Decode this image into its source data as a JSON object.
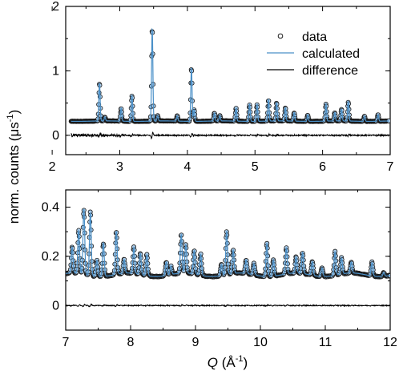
{
  "chart_data": {
    "type": "scatter",
    "ylabel": {
      "main": "norm. counts (μs",
      "sup": "-1",
      "close": ")"
    },
    "xlabel": {
      "sym": "Q",
      "open": " (Å",
      "sup": "-1",
      "close": ")"
    },
    "legend": {
      "placement": "top-right",
      "entries": [
        {
          "key": "data",
          "label": "data",
          "marker": "circle"
        },
        {
          "key": "calculated",
          "label": "calculated",
          "marker": "line"
        },
        {
          "key": "difference",
          "label": "difference",
          "marker": "line"
        }
      ]
    },
    "colors": {
      "data_marker_fill": "#a9c9e6",
      "data_marker_edge": "#1a1a1a",
      "calculated": "#4a90c8",
      "difference": "#000000"
    },
    "panels": [
      {
        "name": "top",
        "xlim": [
          2.2,
          7.0
        ],
        "ylim": [
          -0.3,
          2.0
        ],
        "xticks": [
          2,
          3,
          4,
          5,
          6,
          7
        ],
        "xtick_labels": [
          "2",
          "3",
          "4",
          "5",
          "6",
          "7"
        ],
        "yticks": [
          0,
          1,
          2
        ],
        "ytick_labels": [
          "0",
          "1",
          "2"
        ],
        "background": 0.22,
        "difference_offset": 0.0,
        "data_range": [
          2.28,
          6.98
        ],
        "peaks": [
          {
            "x": 2.7,
            "y": 0.8
          },
          {
            "x": 2.78,
            "y": 0.28
          },
          {
            "x": 3.02,
            "y": 0.42
          },
          {
            "x": 3.18,
            "y": 0.62
          },
          {
            "x": 3.48,
            "y": 1.65
          },
          {
            "x": 3.56,
            "y": 0.3
          },
          {
            "x": 3.85,
            "y": 0.3
          },
          {
            "x": 4.06,
            "y": 1.05
          },
          {
            "x": 4.1,
            "y": 0.4
          },
          {
            "x": 4.4,
            "y": 0.34
          },
          {
            "x": 4.48,
            "y": 0.3
          },
          {
            "x": 4.72,
            "y": 0.42
          },
          {
            "x": 4.92,
            "y": 0.48
          },
          {
            "x": 5.03,
            "y": 0.48
          },
          {
            "x": 5.2,
            "y": 0.55
          },
          {
            "x": 5.32,
            "y": 0.5
          },
          {
            "x": 5.45,
            "y": 0.42
          },
          {
            "x": 5.58,
            "y": 0.35
          },
          {
            "x": 5.78,
            "y": 0.32
          },
          {
            "x": 6.05,
            "y": 0.48
          },
          {
            "x": 6.18,
            "y": 0.35
          },
          {
            "x": 6.28,
            "y": 0.4
          },
          {
            "x": 6.38,
            "y": 0.52
          },
          {
            "x": 6.62,
            "y": 0.3
          },
          {
            "x": 6.82,
            "y": 0.32
          }
        ]
      },
      {
        "name": "bottom",
        "xlim": [
          7.0,
          12.0
        ],
        "ylim": [
          -0.1,
          0.47
        ],
        "xticks": [
          7,
          8,
          9,
          10,
          11,
          12
        ],
        "xtick_labels": [
          "7",
          "8",
          "9",
          "10",
          "11",
          "12"
        ],
        "yticks": [
          0,
          0.2,
          0.4
        ],
        "ytick_labels": [
          "0",
          "0.2",
          "0.4"
        ],
        "background": 0.125,
        "difference_offset": 0.0,
        "data_range": [
          7.0,
          12.0
        ],
        "peaks": [
          {
            "x": 7.1,
            "y": 0.23
          },
          {
            "x": 7.2,
            "y": 0.3
          },
          {
            "x": 7.28,
            "y": 0.39
          },
          {
            "x": 7.38,
            "y": 0.38
          },
          {
            "x": 7.48,
            "y": 0.19
          },
          {
            "x": 7.58,
            "y": 0.26
          },
          {
            "x": 7.78,
            "y": 0.3
          },
          {
            "x": 7.9,
            "y": 0.18
          },
          {
            "x": 8.05,
            "y": 0.23
          },
          {
            "x": 8.15,
            "y": 0.21
          },
          {
            "x": 8.25,
            "y": 0.21
          },
          {
            "x": 8.55,
            "y": 0.18
          },
          {
            "x": 8.62,
            "y": 0.16
          },
          {
            "x": 8.78,
            "y": 0.28
          },
          {
            "x": 8.85,
            "y": 0.24
          },
          {
            "x": 8.98,
            "y": 0.22
          },
          {
            "x": 9.08,
            "y": 0.21
          },
          {
            "x": 9.4,
            "y": 0.17
          },
          {
            "x": 9.48,
            "y": 0.3
          },
          {
            "x": 9.58,
            "y": 0.22
          },
          {
            "x": 9.78,
            "y": 0.18
          },
          {
            "x": 9.9,
            "y": 0.17
          },
          {
            "x": 10.1,
            "y": 0.26
          },
          {
            "x": 10.2,
            "y": 0.19
          },
          {
            "x": 10.4,
            "y": 0.23
          },
          {
            "x": 10.55,
            "y": 0.19
          },
          {
            "x": 10.65,
            "y": 0.21
          },
          {
            "x": 10.8,
            "y": 0.18
          },
          {
            "x": 10.95,
            "y": 0.16
          },
          {
            "x": 11.15,
            "y": 0.22
          },
          {
            "x": 11.25,
            "y": 0.19
          },
          {
            "x": 11.4,
            "y": 0.17
          },
          {
            "x": 11.72,
            "y": 0.18
          },
          {
            "x": 11.9,
            "y": 0.14
          }
        ]
      }
    ]
  }
}
